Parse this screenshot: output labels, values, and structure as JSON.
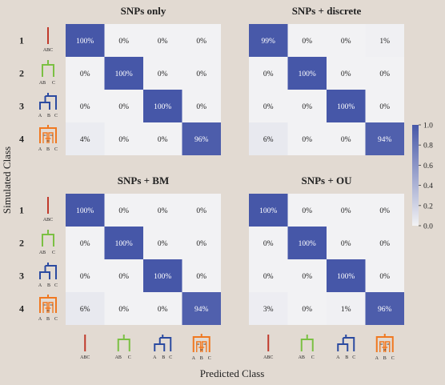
{
  "chart_data": [
    {
      "type": "heatmap",
      "title": "SNPs only",
      "row_labels": [
        "1",
        "2",
        "3",
        "4"
      ],
      "values": [
        [
          100,
          0,
          0,
          0
        ],
        [
          0,
          100,
          0,
          0
        ],
        [
          0,
          0,
          100,
          0
        ],
        [
          4,
          0,
          0,
          96
        ]
      ],
      "value_suffix": "%"
    },
    {
      "type": "heatmap",
      "title": "SNPs + discrete",
      "row_labels": [
        "1",
        "2",
        "3",
        "4"
      ],
      "values": [
        [
          99,
          0,
          0,
          1
        ],
        [
          0,
          100,
          0,
          0
        ],
        [
          0,
          0,
          100,
          0
        ],
        [
          6,
          0,
          0,
          94
        ]
      ],
      "value_suffix": "%"
    },
    {
      "type": "heatmap",
      "title": "SNPs + BM",
      "row_labels": [
        "1",
        "2",
        "3",
        "4"
      ],
      "values": [
        [
          100,
          0,
          0,
          0
        ],
        [
          0,
          100,
          0,
          0
        ],
        [
          0,
          0,
          100,
          0
        ],
        [
          6,
          0,
          0,
          94
        ]
      ],
      "value_suffix": "%"
    },
    {
      "type": "heatmap",
      "title": "SNPs + OU",
      "row_labels": [
        "1",
        "2",
        "3",
        "4"
      ],
      "values": [
        [
          100,
          0,
          0,
          0
        ],
        [
          0,
          100,
          0,
          0
        ],
        [
          0,
          0,
          100,
          0
        ],
        [
          3,
          0,
          1,
          96
        ]
      ],
      "value_suffix": "%"
    }
  ],
  "axes": {
    "ylabel": "Simulated Class",
    "xlabel": "Predicted Class"
  },
  "colorbar": {
    "ticks": [
      "1.0",
      "0.8",
      "0.6",
      "0.4",
      "0.2",
      "0.0"
    ],
    "min": 0,
    "max": 1,
    "low_color": "#f2f2f4",
    "high_color": "#4657a8"
  },
  "models": [
    {
      "id": "single",
      "color": "#c0392b",
      "labels": [
        "ABC"
      ]
    },
    {
      "id": "ab-c",
      "color": "#7bc043",
      "labels": [
        "AB",
        "C"
      ]
    },
    {
      "id": "a-b-c",
      "color": "#2b4aa0",
      "labels": [
        "A",
        "B",
        "C"
      ]
    },
    {
      "id": "hybrid",
      "color": "#f07820",
      "labels": [
        "A",
        "B",
        "C"
      ],
      "inner_labels": [
        "M",
        "M",
        "M"
      ]
    }
  ]
}
